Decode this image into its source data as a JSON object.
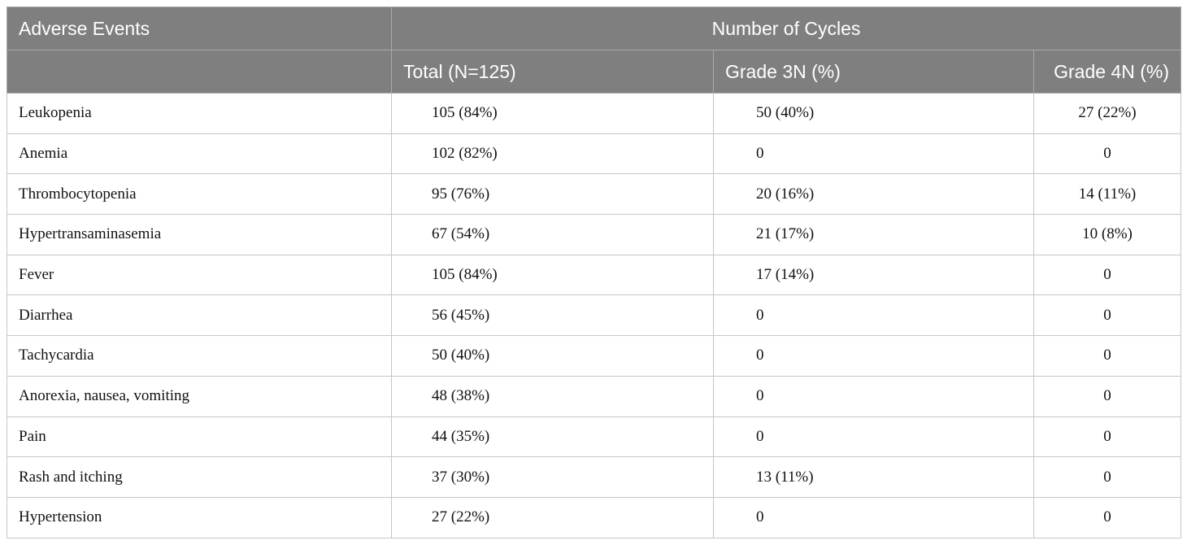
{
  "table": {
    "headers": {
      "adverse_events": "Adverse Events",
      "number_of_cycles": "Number of Cycles",
      "total": "Total (N=125)",
      "grade3": "Grade 3N (%)",
      "grade4": "Grade 4N (%)"
    },
    "rows": [
      {
        "event": "Leukopenia",
        "total": "105 (84%)",
        "grade3": "50 (40%)",
        "grade4": "27 (22%)"
      },
      {
        "event": "Anemia",
        "total": "102 (82%)",
        "grade3": "0",
        "grade4": "0"
      },
      {
        "event": "Thrombocytopenia",
        "total": "95 (76%)",
        "grade3": "20 (16%)",
        "grade4": "14 (11%)"
      },
      {
        "event": "Hypertransaminasemia",
        "total": "67 (54%)",
        "grade3": "21 (17%)",
        "grade4": "10 (8%)"
      },
      {
        "event": "Fever",
        "total": "105 (84%)",
        "grade3": "17 (14%)",
        "grade4": "0"
      },
      {
        "event": "Diarrhea",
        "total": "56 (45%)",
        "grade3": "0",
        "grade4": "0"
      },
      {
        "event": "Tachycardia",
        "total": "50 (40%)",
        "grade3": "0",
        "grade4": "0"
      },
      {
        "event": "Anorexia, nausea, vomiting",
        "total": "48 (38%)",
        "grade3": "0",
        "grade4": "0"
      },
      {
        "event": "Pain",
        "total": "44 (35%)",
        "grade3": "0",
        "grade4": "0"
      },
      {
        "event": "Rash and itching",
        "total": "37 (30%)",
        "grade3": "13 (11%)",
        "grade4": "0"
      },
      {
        "event": "Hypertension",
        "total": "27 (22%)",
        "grade3": "0",
        "grade4": "0"
      }
    ]
  }
}
